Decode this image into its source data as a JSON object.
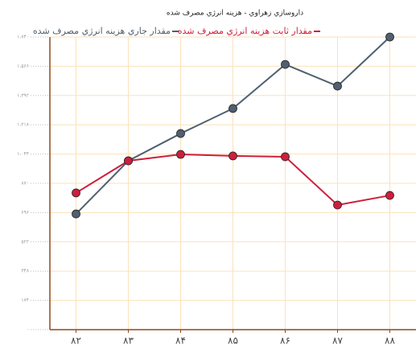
{
  "chart_data": {
    "type": "line",
    "title": "داروسازي زهراوي - هزينه انرژي مصرف شده",
    "categories": [
      "۸۲",
      "۸۳",
      "۸۴",
      "۸۵",
      "۸۶",
      "۸۷",
      "۸۸"
    ],
    "series": [
      {
        "name": "مقدار جاري هزينه انرژي مصرف شده",
        "color": "#4f6070",
        "values": [
          688,
          1004,
          1166,
          1315,
          1577,
          1448,
          1740
        ]
      },
      {
        "name": "مقدار ثابت هزينه انرژي مصرف شده",
        "color": "#cc1f3d",
        "values": [
          813,
          1004,
          1042,
          1033,
          1028,
          741,
          798
        ]
      }
    ],
    "ylim": [
      0,
      1740
    ],
    "yticks": [
      {
        "value": 0,
        "label": "۰"
      },
      {
        "value": 174,
        "label": "۱۷۴"
      },
      {
        "value": 348,
        "label": "۳۴۸"
      },
      {
        "value": 522,
        "label": "۵۲۲"
      },
      {
        "value": 696,
        "label": "۶۹۶"
      },
      {
        "value": 870,
        "label": "۸۷۰"
      },
      {
        "value": 1044,
        "label": "۱،۰۴۴"
      },
      {
        "value": 1218,
        "label": "۱،۲۱۸"
      },
      {
        "value": 1392,
        "label": "۱،۳۹۲"
      },
      {
        "value": 1566,
        "label": "۱،۵۶۶"
      },
      {
        "value": 1740,
        "label": "۱،۷۴۰"
      }
    ],
    "grid": true
  }
}
